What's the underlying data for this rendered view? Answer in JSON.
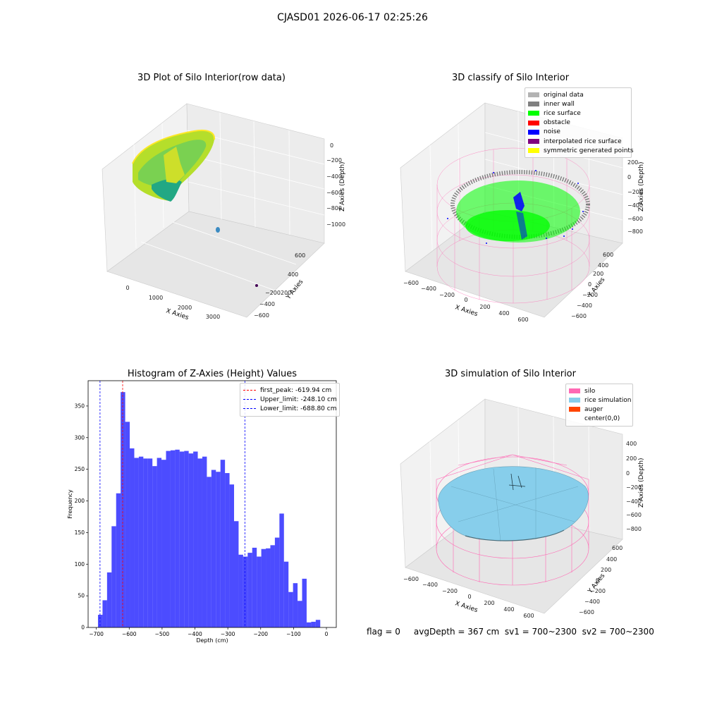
{
  "figure": {
    "suptitle": "CJASD01 2026-06-17 02:25:26",
    "footer": "flag = 0     avgDepth = 367 cm  sv1 = 700~2300  sv2 = 700~2300"
  },
  "panels": {
    "raw": {
      "title": "3D Plot of Silo Interior(row data)",
      "xlabel": "X Axies",
      "ylabel": "Y Axies",
      "zlabel": "Z Axies (Depth)",
      "xticks": [
        "0",
        "1000",
        "2000",
        "3000"
      ],
      "yticks": [
        "600",
        "400",
        "200",
        "−200",
        "−400",
        "−600"
      ],
      "zticks": [
        "0",
        "−200",
        "−400",
        "−600",
        "−800",
        "−1000"
      ]
    },
    "classify": {
      "title": "3D classify of Silo Interior",
      "xlabel": "X Axies",
      "ylabel": "Y Axies",
      "zlabel": "Z Axies (Depth)",
      "xticks": [
        "−600",
        "−400",
        "−200",
        "0",
        "200",
        "400",
        "600"
      ],
      "yticks": [
        "600",
        "400",
        "200",
        "0",
        "−200",
        "−400",
        "−600"
      ],
      "zticks": [
        "200",
        "0",
        "−200",
        "−400",
        "−600",
        "−800"
      ],
      "legend": [
        {
          "label": "original data",
          "color": "#b3b3b3"
        },
        {
          "label": "inner wall",
          "color": "#808080"
        },
        {
          "label": "rice surface",
          "color": "#00ff00"
        },
        {
          "label": "obstacle",
          "color": "#ff0000"
        },
        {
          "label": "noise",
          "color": "#0000ff"
        },
        {
          "label": "interpolated rice surface",
          "color": "#800080"
        },
        {
          "label": "symmetric generated points",
          "color": "#ffff00"
        }
      ]
    },
    "simulation": {
      "title": "3D simulation of Silo Interior",
      "xlabel": "X Axies",
      "ylabel": "Y Axies",
      "zlabel": "Z Axies (Depth)",
      "xticks": [
        "−600",
        "−400",
        "−200",
        "0",
        "200",
        "400",
        "600"
      ],
      "yticks": [
        "600",
        "400",
        "200",
        "0",
        "−200",
        "−400",
        "−600"
      ],
      "zticks": [
        "400",
        "200",
        "0",
        "−200",
        "−400",
        "−600",
        "−800"
      ],
      "legend": [
        {
          "label": "silo",
          "color": "#ff69b4"
        },
        {
          "label": "rice simulation",
          "color": "#87ceeb"
        },
        {
          "label": "auger",
          "color": "#ff4500"
        },
        {
          "label": "center(0,0)",
          "color": ""
        }
      ]
    }
  },
  "chart_data": {
    "type": "bar",
    "title": "Histogram of Z-Axies (Height) Values",
    "xlabel": "Depth (cm)",
    "ylabel": "Frequency",
    "bar_color": "#0000ff",
    "bin_start": -695,
    "bin_width": 13.8,
    "values": [
      20,
      43,
      87,
      160,
      212,
      372,
      325,
      283,
      268,
      270,
      267,
      267,
      255,
      268,
      265,
      279,
      280,
      281,
      278,
      279,
      275,
      278,
      267,
      270,
      238,
      249,
      246,
      265,
      244,
      226,
      168,
      115,
      112,
      118,
      126,
      112,
      124,
      125,
      130,
      142,
      180,
      104,
      56,
      70,
      42,
      77,
      8,
      9,
      12
    ],
    "xlim": [
      -725,
      30
    ],
    "ylim": [
      0,
      390
    ],
    "xticks": [
      -700,
      -600,
      -500,
      -400,
      -300,
      -200,
      -100,
      0
    ],
    "yticks": [
      0,
      50,
      100,
      150,
      200,
      250,
      300,
      350
    ],
    "vlines": [
      {
        "label": "first_peak: -619.94 cm",
        "x": -619.94,
        "color": "#ff0000"
      },
      {
        "label": "Upper_limit: -248.10 cm",
        "x": -248.1,
        "color": "#0000ff"
      },
      {
        "label": "Lower_limit: -688.80 cm",
        "x": -688.8,
        "color": "#0000ff"
      }
    ],
    "legend_position": "top-right",
    "grid": false
  }
}
